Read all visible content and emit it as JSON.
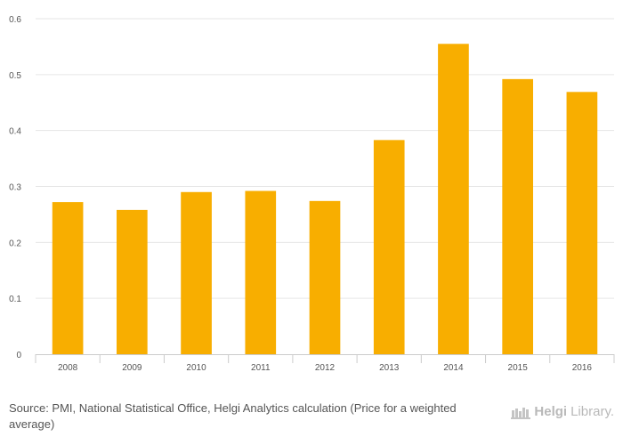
{
  "chart_data": {
    "type": "bar",
    "categories": [
      "2008",
      "2009",
      "2010",
      "2011",
      "2012",
      "2013",
      "2014",
      "2015",
      "2016"
    ],
    "values": [
      0.272,
      0.258,
      0.29,
      0.292,
      0.274,
      0.383,
      0.555,
      0.492,
      0.469
    ],
    "ylim": [
      0,
      0.6
    ],
    "yticks": [
      0,
      0.1,
      0.2,
      0.3,
      0.4,
      0.5,
      0.6
    ],
    "ytick_labels": [
      "0",
      "0.1",
      "0.2",
      "0.3",
      "0.4",
      "0.5",
      "0.6"
    ],
    "grid": true,
    "bar_color": "#f8ae00",
    "grid_color": "#e6e6e6",
    "axis_text_color": "#555555"
  },
  "footer": {
    "source": "Source: PMI, National Statistical Office, Helgi Analytics calculation (Price for a weighted average)",
    "brand_prefix": "Helgi",
    "brand_suffix": "Library."
  }
}
